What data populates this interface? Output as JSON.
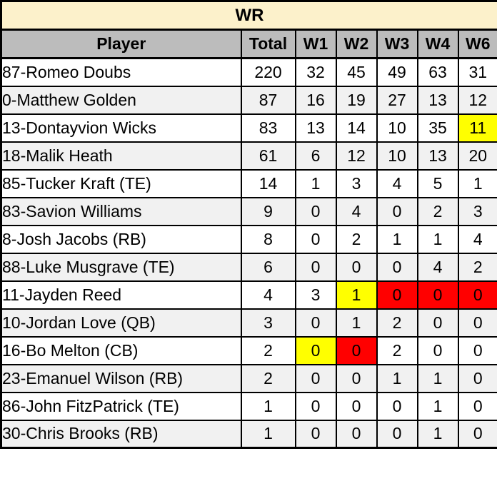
{
  "chart_data": {
    "type": "table",
    "title": "WR",
    "columns": [
      "Player",
      "Total",
      "W1",
      "W2",
      "W3",
      "W4",
      "W6"
    ],
    "rows": [
      {
        "player": "87-Romeo Doubs",
        "values": [
          "220",
          "32",
          "45",
          "49",
          "63",
          "31"
        ],
        "highlights": {}
      },
      {
        "player": "0-Matthew Golden",
        "values": [
          "87",
          "16",
          "19",
          "27",
          "13",
          "12"
        ],
        "highlights": {}
      },
      {
        "player": "13-Dontayvion Wicks",
        "values": [
          "83",
          "13",
          "14",
          "10",
          "35",
          "11"
        ],
        "highlights": {
          "5": "yellow"
        }
      },
      {
        "player": "18-Malik Heath",
        "values": [
          "61",
          "6",
          "12",
          "10",
          "13",
          "20"
        ],
        "highlights": {}
      },
      {
        "player": "85-Tucker Kraft (TE)",
        "values": [
          "14",
          "1",
          "3",
          "4",
          "5",
          "1"
        ],
        "highlights": {}
      },
      {
        "player": "83-Savion Williams",
        "values": [
          "9",
          "0",
          "4",
          "0",
          "2",
          "3"
        ],
        "highlights": {}
      },
      {
        "player": "8-Josh Jacobs (RB)",
        "values": [
          "8",
          "0",
          "2",
          "1",
          "1",
          "4"
        ],
        "highlights": {}
      },
      {
        "player": "88-Luke Musgrave (TE)",
        "values": [
          "6",
          "0",
          "0",
          "0",
          "4",
          "2"
        ],
        "highlights": {}
      },
      {
        "player": "11-Jayden Reed",
        "values": [
          "4",
          "3",
          "1",
          "0",
          "0",
          "0"
        ],
        "highlights": {
          "2": "yellow",
          "3": "red",
          "4": "red",
          "5": "red"
        }
      },
      {
        "player": "10-Jordan Love (QB)",
        "values": [
          "3",
          "0",
          "1",
          "2",
          "0",
          "0"
        ],
        "highlights": {}
      },
      {
        "player": "16-Bo Melton (CB)",
        "values": [
          "2",
          "0",
          "0",
          "2",
          "0",
          "0"
        ],
        "highlights": {
          "1": "yellow",
          "2": "red"
        }
      },
      {
        "player": "23-Emanuel Wilson (RB)",
        "values": [
          "2",
          "0",
          "0",
          "1",
          "1",
          "0"
        ],
        "highlights": {}
      },
      {
        "player": "86-John FitzPatrick (TE)",
        "values": [
          "1",
          "0",
          "0",
          "0",
          "1",
          "0"
        ],
        "highlights": {}
      },
      {
        "player": "30-Chris Brooks (RB)",
        "values": [
          "1",
          "0",
          "0",
          "0",
          "1",
          "0"
        ],
        "highlights": {}
      }
    ]
  },
  "colors": {
    "title_bg": "#FCF1CB",
    "header_bg": "#BCBCBC",
    "row_odd_bg": "#FFFFFF",
    "row_even_bg": "#F1F1F1",
    "border": "#000000",
    "text": "#000000",
    "highlight_yellow": "#FFFF00",
    "highlight_red": "#FF0000"
  }
}
